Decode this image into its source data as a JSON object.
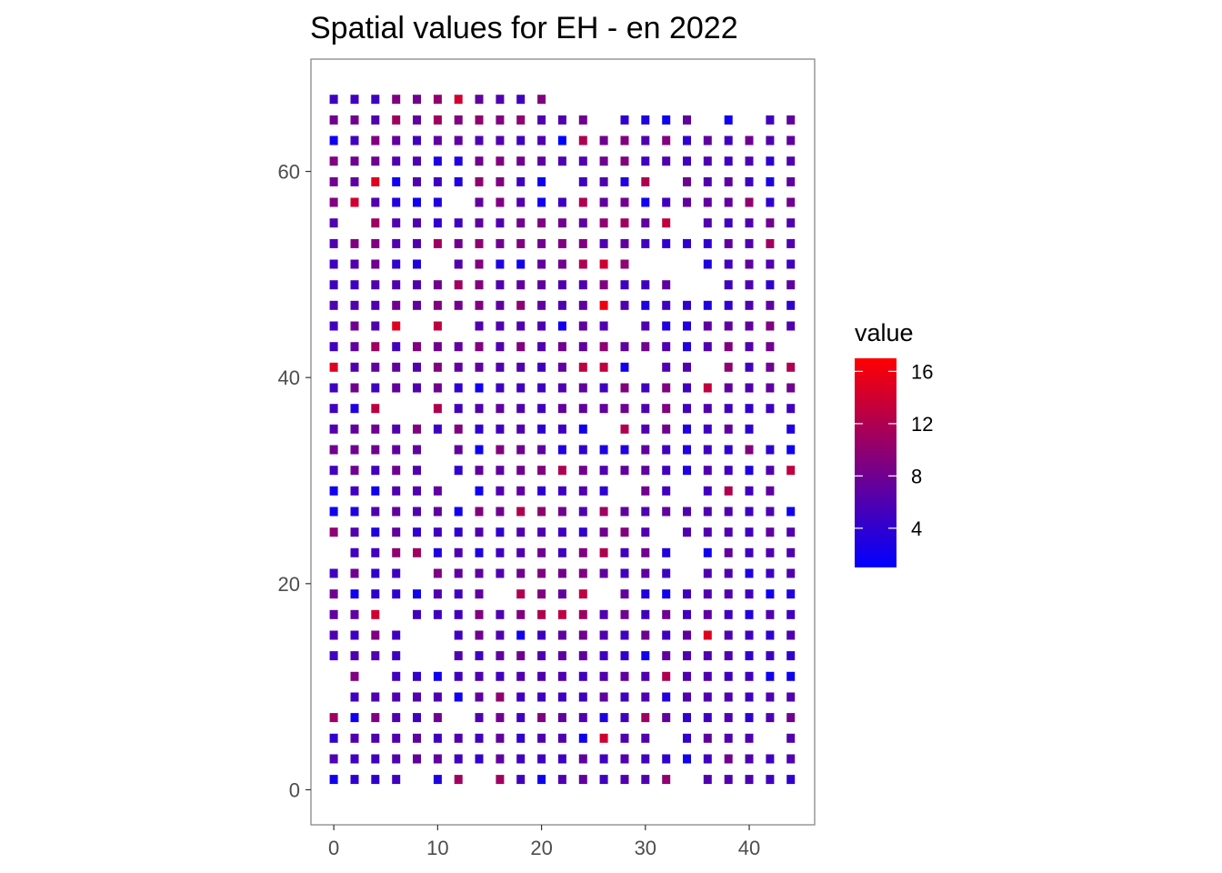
{
  "chart_data": {
    "type": "heatmap",
    "title": "Spatial values for EH - en 2022",
    "xlabel": "",
    "ylabel": "",
    "xlim": [
      -2.2,
      46.3
    ],
    "ylim": [
      -3.4,
      70.9
    ],
    "x_ticks": [
      0,
      10,
      20,
      30,
      40
    ],
    "y_ticks": [
      0,
      20,
      40,
      60
    ],
    "grid": false,
    "legend": {
      "title": "value",
      "position": "right",
      "range": [
        1,
        17
      ],
      "ticks": [
        4,
        8,
        12,
        16
      ],
      "low_color": "#0000FF",
      "high_color": "#FF0000"
    },
    "columns": [
      0,
      2,
      4,
      6,
      8,
      10,
      12,
      14,
      16,
      18,
      20,
      22,
      24,
      26,
      28,
      30,
      32,
      34,
      36,
      38,
      40,
      42,
      44
    ],
    "rows": [
      {
        "y": 67,
        "values": [
          5,
          5,
          5,
          9,
          8,
          10,
          14,
          7,
          6,
          5,
          9,
          null,
          null,
          null,
          null,
          null,
          null,
          null,
          null,
          null,
          null,
          null,
          null
        ]
      },
      {
        "y": 65,
        "values": [
          8,
          8,
          6,
          11,
          7,
          11,
          9,
          10,
          9,
          10,
          6,
          6,
          8,
          null,
          4,
          3,
          2,
          7,
          null,
          2,
          null,
          5,
          7
        ]
      },
      {
        "y": 63,
        "values": [
          2,
          5,
          9,
          7,
          5,
          7,
          7,
          6,
          6,
          5,
          6,
          1,
          12,
          8,
          9,
          6,
          9,
          4,
          7,
          5,
          8,
          6,
          7
        ]
      },
      {
        "y": 61,
        "values": [
          9,
          8,
          8,
          6,
          6,
          3,
          3,
          8,
          9,
          8,
          7,
          6,
          6,
          8,
          9,
          5,
          6,
          5,
          6,
          5,
          6,
          4,
          6
        ]
      },
      {
        "y": 59,
        "values": [
          8,
          7,
          15,
          2,
          6,
          5,
          3,
          10,
          9,
          5,
          2,
          null,
          5,
          6,
          3,
          12,
          null,
          8,
          6,
          7,
          5,
          3,
          7
        ]
      },
      {
        "y": 57,
        "values": [
          9,
          14,
          6,
          3,
          2,
          3,
          null,
          7,
          9,
          6,
          2,
          5,
          12,
          7,
          8,
          2,
          5,
          7,
          7,
          7,
          10,
          4,
          8
        ]
      },
      {
        "y": 55,
        "values": [
          6,
          null,
          11,
          6,
          6,
          4,
          5,
          7,
          6,
          8,
          9,
          8,
          7,
          10,
          11,
          7,
          13,
          null,
          6,
          5,
          6,
          8,
          6
        ]
      },
      {
        "y": 53,
        "values": [
          6,
          9,
          9,
          6,
          6,
          11,
          8,
          10,
          8,
          9,
          8,
          9,
          9,
          6,
          7,
          5,
          4,
          4,
          4,
          7,
          6,
          11,
          6
        ]
      },
      {
        "y": 51,
        "values": [
          5,
          6,
          8,
          4,
          3,
          null,
          6,
          9,
          3,
          2,
          7,
          8,
          12,
          14,
          10,
          null,
          null,
          null,
          3,
          5,
          7,
          6,
          5
        ]
      },
      {
        "y": 49,
        "values": [
          5,
          5,
          6,
          6,
          6,
          8,
          11,
          9,
          6,
          7,
          7,
          6,
          6,
          9,
          5,
          5,
          7,
          null,
          null,
          5,
          6,
          4,
          7
        ]
      },
      {
        "y": 47,
        "values": [
          6,
          6,
          6,
          8,
          7,
          9,
          8,
          9,
          7,
          10,
          7,
          6,
          7,
          16,
          6,
          3,
          5,
          4,
          3,
          4,
          6,
          7,
          4
        ]
      },
      {
        "y": 45,
        "values": [
          5,
          8,
          6,
          15,
          null,
          13,
          null,
          6,
          6,
          6,
          6,
          2,
          7,
          6,
          null,
          6,
          3,
          3,
          7,
          7,
          7,
          9,
          6
        ]
      },
      {
        "y": 43,
        "values": [
          5,
          7,
          11,
          5,
          9,
          8,
          7,
          9,
          6,
          9,
          6,
          8,
          7,
          10,
          7,
          8,
          6,
          3,
          6,
          9,
          6,
          8,
          null
        ]
      },
      {
        "y": 41,
        "values": [
          15,
          6,
          7,
          7,
          6,
          9,
          7,
          7,
          6,
          6,
          5,
          7,
          13,
          13,
          2,
          null,
          6,
          6,
          null,
          10,
          5,
          8,
          12
        ]
      },
      {
        "y": 39,
        "values": [
          5,
          8,
          5,
          7,
          6,
          8,
          4,
          2,
          5,
          5,
          5,
          6,
          7,
          5,
          9,
          5,
          9,
          5,
          13,
          7,
          6,
          7,
          8
        ]
      },
      {
        "y": 37,
        "values": [
          5,
          3,
          13,
          null,
          null,
          12,
          5,
          6,
          7,
          6,
          5,
          7,
          7,
          7,
          8,
          6,
          9,
          5,
          6,
          5,
          4,
          5,
          5
        ]
      },
      {
        "y": 35,
        "values": [
          6,
          7,
          8,
          6,
          9,
          5,
          9,
          4,
          5,
          6,
          4,
          5,
          2,
          null,
          12,
          6,
          8,
          3,
          5,
          7,
          4,
          null,
          3
        ]
      },
      {
        "y": 33,
        "values": [
          8,
          8,
          8,
          7,
          7,
          null,
          7,
          2,
          9,
          8,
          7,
          3,
          4,
          3,
          3,
          7,
          5,
          3,
          5,
          4,
          9,
          4,
          2
        ]
      },
      {
        "y": 31,
        "values": [
          5,
          8,
          5,
          8,
          6,
          null,
          4,
          7,
          7,
          8,
          9,
          12,
          8,
          6,
          7,
          7,
          5,
          3,
          6,
          5,
          3,
          6,
          13
        ]
      },
      {
        "y": 29,
        "values": [
          2,
          5,
          2,
          6,
          6,
          7,
          null,
          2,
          6,
          7,
          4,
          5,
          6,
          4,
          null,
          8,
          5,
          null,
          5,
          12,
          5,
          7,
          null
        ]
      },
      {
        "y": 27,
        "values": [
          2,
          3,
          6,
          7,
          6,
          7,
          2,
          9,
          8,
          12,
          10,
          8,
          6,
          11,
          7,
          6,
          7,
          6,
          6,
          6,
          5,
          6,
          2
        ]
      },
      {
        "y": 25,
        "values": [
          10,
          6,
          3,
          7,
          4,
          5,
          4,
          6,
          4,
          6,
          6,
          5,
          4,
          8,
          9,
          6,
          null,
          6,
          6,
          6,
          5,
          7,
          6
        ]
      },
      {
        "y": 23,
        "values": [
          null,
          5,
          5,
          10,
          11,
          3,
          6,
          3,
          5,
          6,
          8,
          5,
          9,
          12,
          5,
          8,
          3,
          null,
          2,
          7,
          5,
          6,
          6
        ]
      },
      {
        "y": 21,
        "values": [
          5,
          8,
          4,
          5,
          null,
          9,
          7,
          7,
          6,
          8,
          9,
          8,
          9,
          7,
          5,
          7,
          5,
          null,
          6,
          6,
          3,
          5,
          6
        ]
      },
      {
        "y": 19,
        "values": [
          8,
          2,
          4,
          4,
          2,
          6,
          5,
          7,
          null,
          12,
          9,
          7,
          13,
          null,
          7,
          3,
          2,
          5,
          6,
          6,
          5,
          2,
          3
        ]
      },
      {
        "y": 17,
        "values": [
          7,
          7,
          14,
          null,
          5,
          5,
          5,
          9,
          6,
          9,
          12,
          13,
          11,
          6,
          8,
          5,
          8,
          5,
          7,
          5,
          3,
          6,
          5
        ]
      },
      {
        "y": 15,
        "values": [
          6,
          5,
          9,
          5,
          null,
          null,
          5,
          8,
          6,
          2,
          5,
          7,
          8,
          6,
          5,
          8,
          5,
          7,
          15,
          6,
          5,
          4,
          6
        ]
      },
      {
        "y": 13,
        "values": [
          5,
          6,
          6,
          5,
          null,
          null,
          6,
          5,
          7,
          8,
          6,
          7,
          7,
          5,
          4,
          2,
          7,
          6,
          6,
          6,
          4,
          5,
          4
        ]
      },
      {
        "y": 11,
        "values": [
          null,
          9,
          null,
          5,
          4,
          2,
          5,
          6,
          5,
          6,
          6,
          6,
          5,
          6,
          7,
          6,
          12,
          6,
          6,
          5,
          5,
          2,
          2
        ]
      },
      {
        "y": 9,
        "values": [
          null,
          5,
          6,
          6,
          6,
          6,
          2,
          7,
          10,
          5,
          5,
          5,
          5,
          7,
          5,
          6,
          3,
          6,
          6,
          6,
          5,
          6,
          6
        ]
      },
      {
        "y": 7,
        "values": [
          11,
          2,
          9,
          6,
          5,
          8,
          null,
          6,
          8,
          5,
          9,
          7,
          6,
          3,
          5,
          11,
          7,
          4,
          5,
          6,
          4,
          6,
          8
        ]
      },
      {
        "y": 5,
        "values": [
          4,
          6,
          6,
          6,
          7,
          5,
          6,
          5,
          7,
          4,
          6,
          6,
          2,
          14,
          6,
          6,
          null,
          4,
          7,
          6,
          6,
          null,
          6
        ]
      },
      {
        "y": 3,
        "values": [
          6,
          5,
          5,
          6,
          7,
          7,
          5,
          4,
          7,
          5,
          5,
          5,
          7,
          5,
          6,
          5,
          4,
          2,
          5,
          8,
          6,
          5,
          6
        ]
      },
      {
        "y": 1,
        "values": [
          2,
          4,
          4,
          5,
          null,
          3,
          11,
          null,
          11,
          5,
          2,
          6,
          7,
          5,
          6,
          6,
          10,
          null,
          6,
          6,
          6,
          5,
          4
        ]
      }
    ]
  }
}
